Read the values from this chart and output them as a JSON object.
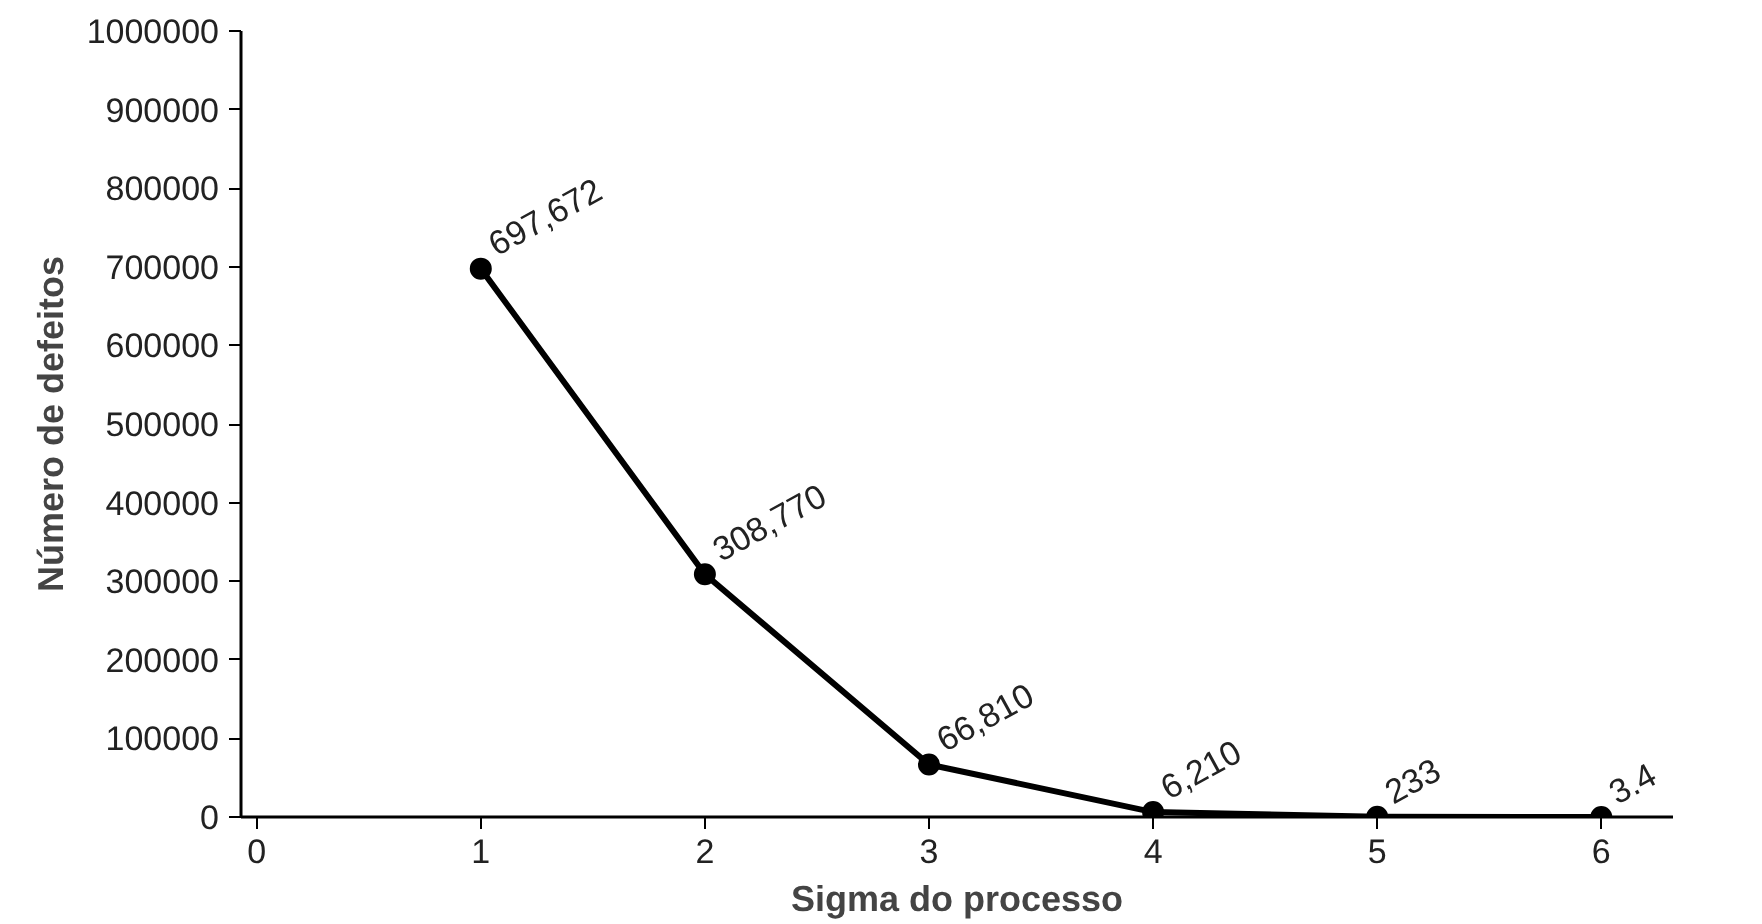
{
  "chart_data": {
    "type": "line",
    "xlabel": "Sigma do processo",
    "ylabel": "Número de defeitos",
    "x": [
      1,
      2,
      3,
      4,
      5,
      6
    ],
    "values": [
      697672,
      308770,
      66810,
      6210,
      233,
      3.4
    ],
    "value_labels": [
      "697,672",
      "308,770",
      "66,810",
      "6,210",
      "233",
      "3.4"
    ],
    "color": "#000000",
    "marker": "circle",
    "line_style": "solid",
    "grid": false,
    "xlim": [
      -0.07,
      6.32
    ],
    "xticks": [
      0,
      1,
      2,
      3,
      4,
      5,
      6
    ],
    "ylim": [
      0,
      1000000
    ],
    "yticks": [
      0,
      100000,
      200000,
      300000,
      400000,
      500000,
      600000,
      700000,
      800000,
      900000,
      1000000
    ]
  }
}
